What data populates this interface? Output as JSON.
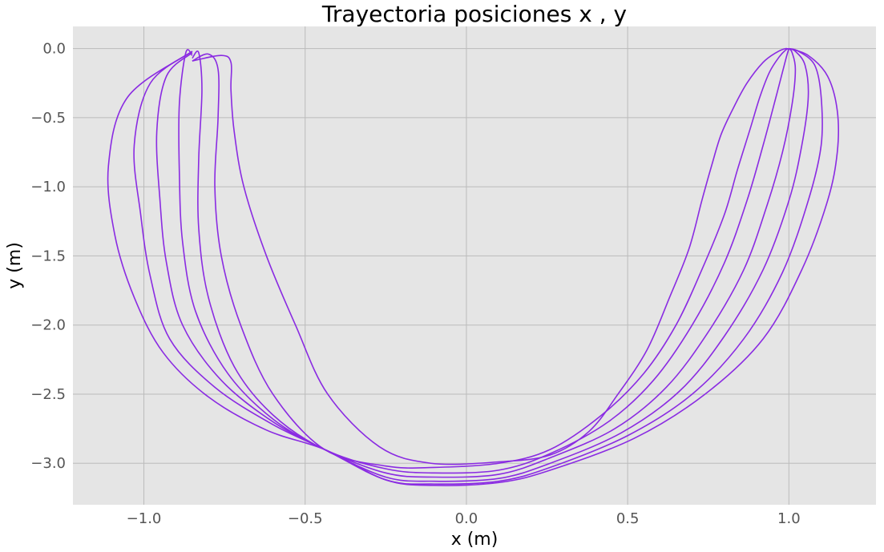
{
  "chart_data": {
    "type": "line",
    "title": "Trayectoria posiciones x , y",
    "xlabel": "x (m)",
    "ylabel": "y (m)",
    "xlim": [
      -1.22,
      1.27
    ],
    "ylim": [
      -3.3,
      0.16
    ],
    "xticks": [
      -1.0,
      -0.5,
      0.0,
      0.5,
      1.0
    ],
    "xtick_labels": [
      "−1.0",
      "−0.5",
      "0.0",
      "0.5",
      "1.0"
    ],
    "yticks": [
      0.0,
      -0.5,
      -1.0,
      -1.5,
      -2.0,
      -2.5,
      -3.0
    ],
    "ytick_labels": [
      "0.0",
      "−0.5",
      "−1.0",
      "−1.5",
      "−2.0",
      "−2.5",
      "−3.0"
    ],
    "grid": true,
    "background": "#e5e5e5",
    "grid_color": "#bbbbbb",
    "line_color": "#8a2be2",
    "series": [
      {
        "x": [
          -0.85,
          -0.76,
          -0.73,
          -0.73,
          -0.72,
          -0.69,
          -0.62,
          -0.53,
          -0.43,
          -0.27,
          -0.11,
          0.1,
          0.26,
          0.38,
          0.47,
          0.56,
          0.63,
          0.69,
          0.73,
          0.76,
          0.79,
          0.83,
          0.87,
          0.92,
          0.96,
          0.99,
          1.0
        ],
        "y": [
          -0.09,
          -0.05,
          -0.1,
          -0.3,
          -0.6,
          -1.0,
          -1.5,
          -2.0,
          -2.5,
          -2.88,
          -3.0,
          -2.99,
          -2.94,
          -2.77,
          -2.5,
          -2.18,
          -1.8,
          -1.45,
          -1.1,
          -0.85,
          -0.62,
          -0.42,
          -0.25,
          -0.1,
          -0.03,
          0.0,
          -0.01
        ]
      },
      {
        "x": [
          -0.85,
          -0.8,
          -0.77,
          -0.77,
          -0.78,
          -0.76,
          -0.7,
          -0.6,
          -0.44,
          -0.25,
          -0.1,
          0.1,
          0.26,
          0.42,
          0.55,
          0.65,
          0.73,
          0.8,
          0.84,
          0.88,
          0.91,
          0.94,
          0.97,
          0.99,
          1.0
        ],
        "y": [
          -0.09,
          -0.04,
          -0.15,
          -0.5,
          -1.0,
          -1.5,
          -2.0,
          -2.5,
          -2.9,
          -3.02,
          -3.03,
          -3.0,
          -2.9,
          -2.65,
          -2.35,
          -2.0,
          -1.6,
          -1.2,
          -0.88,
          -0.58,
          -0.35,
          -0.17,
          -0.06,
          -0.01,
          0.0
        ]
      },
      {
        "x": [
          -0.85,
          -0.83,
          -0.82,
          -0.83,
          -0.83,
          -0.8,
          -0.72,
          -0.6,
          -0.44,
          -0.25,
          -0.1,
          0.1,
          0.26,
          0.44,
          0.58,
          0.7,
          0.8,
          0.87,
          0.92,
          0.96,
          0.99,
          1.0
        ],
        "y": [
          -0.07,
          -0.03,
          -0.3,
          -0.8,
          -1.3,
          -1.8,
          -2.3,
          -2.65,
          -2.9,
          -3.04,
          -3.07,
          -3.05,
          -2.93,
          -2.7,
          -2.4,
          -2.0,
          -1.55,
          -1.1,
          -0.7,
          -0.35,
          -0.08,
          0.0
        ]
      },
      {
        "x": [
          -0.85,
          -0.87,
          -0.89,
          -0.89,
          -0.88,
          -0.84,
          -0.74,
          -0.6,
          -0.44,
          -0.25,
          -0.1,
          0.1,
          0.26,
          0.46,
          0.62,
          0.75,
          0.86,
          0.93,
          0.98,
          1.01,
          1.02,
          1.01,
          1.0
        ],
        "y": [
          -0.05,
          -0.03,
          -0.4,
          -0.9,
          -1.4,
          -1.9,
          -2.35,
          -2.68,
          -2.9,
          -3.07,
          -3.1,
          -3.08,
          -2.96,
          -2.75,
          -2.45,
          -2.05,
          -1.6,
          -1.15,
          -0.75,
          -0.4,
          -0.15,
          -0.03,
          0.0
        ]
      },
      {
        "x": [
          -0.85,
          -0.93,
          -0.96,
          -0.95,
          -0.93,
          -0.88,
          -0.76,
          -0.6,
          -0.44,
          -0.25,
          -0.1,
          0.1,
          0.26,
          0.48,
          0.66,
          0.8,
          0.92,
          1.0,
          1.04,
          1.06,
          1.05,
          1.02,
          1.0
        ],
        "y": [
          -0.03,
          -0.2,
          -0.6,
          -1.1,
          -1.55,
          -2.0,
          -2.4,
          -2.7,
          -2.9,
          -3.1,
          -3.13,
          -3.11,
          -3.0,
          -2.78,
          -2.48,
          -2.08,
          -1.6,
          -1.1,
          -0.7,
          -0.35,
          -0.12,
          -0.02,
          0.0
        ]
      },
      {
        "x": [
          -0.85,
          -0.98,
          -1.03,
          -1.01,
          -0.98,
          -0.92,
          -0.78,
          -0.6,
          -0.44,
          -0.25,
          -0.1,
          0.1,
          0.26,
          0.5,
          0.7,
          0.86,
          0.98,
          1.06,
          1.1,
          1.1,
          1.08,
          1.03,
          1.0
        ],
        "y": [
          -0.02,
          -0.25,
          -0.7,
          -1.2,
          -1.65,
          -2.1,
          -2.45,
          -2.72,
          -2.9,
          -3.12,
          -3.15,
          -3.13,
          -3.03,
          -2.8,
          -2.5,
          -2.1,
          -1.62,
          -1.1,
          -0.7,
          -0.35,
          -0.12,
          -0.02,
          0.0
        ]
      },
      {
        "x": [
          -0.85,
          -1.05,
          -1.11,
          -1.09,
          -1.03,
          -0.94,
          -0.8,
          -0.62,
          -0.44,
          -0.25,
          -0.1,
          0.1,
          0.26,
          0.52,
          0.74,
          0.92,
          1.04,
          1.12,
          1.15,
          1.15,
          1.12,
          1.06,
          1.0
        ],
        "y": [
          -0.02,
          -0.35,
          -0.85,
          -1.35,
          -1.8,
          -2.2,
          -2.52,
          -2.76,
          -2.9,
          -3.12,
          -3.16,
          -3.14,
          -3.05,
          -2.82,
          -2.5,
          -2.1,
          -1.6,
          -1.1,
          -0.75,
          -0.45,
          -0.2,
          -0.05,
          0.0
        ]
      }
    ]
  }
}
